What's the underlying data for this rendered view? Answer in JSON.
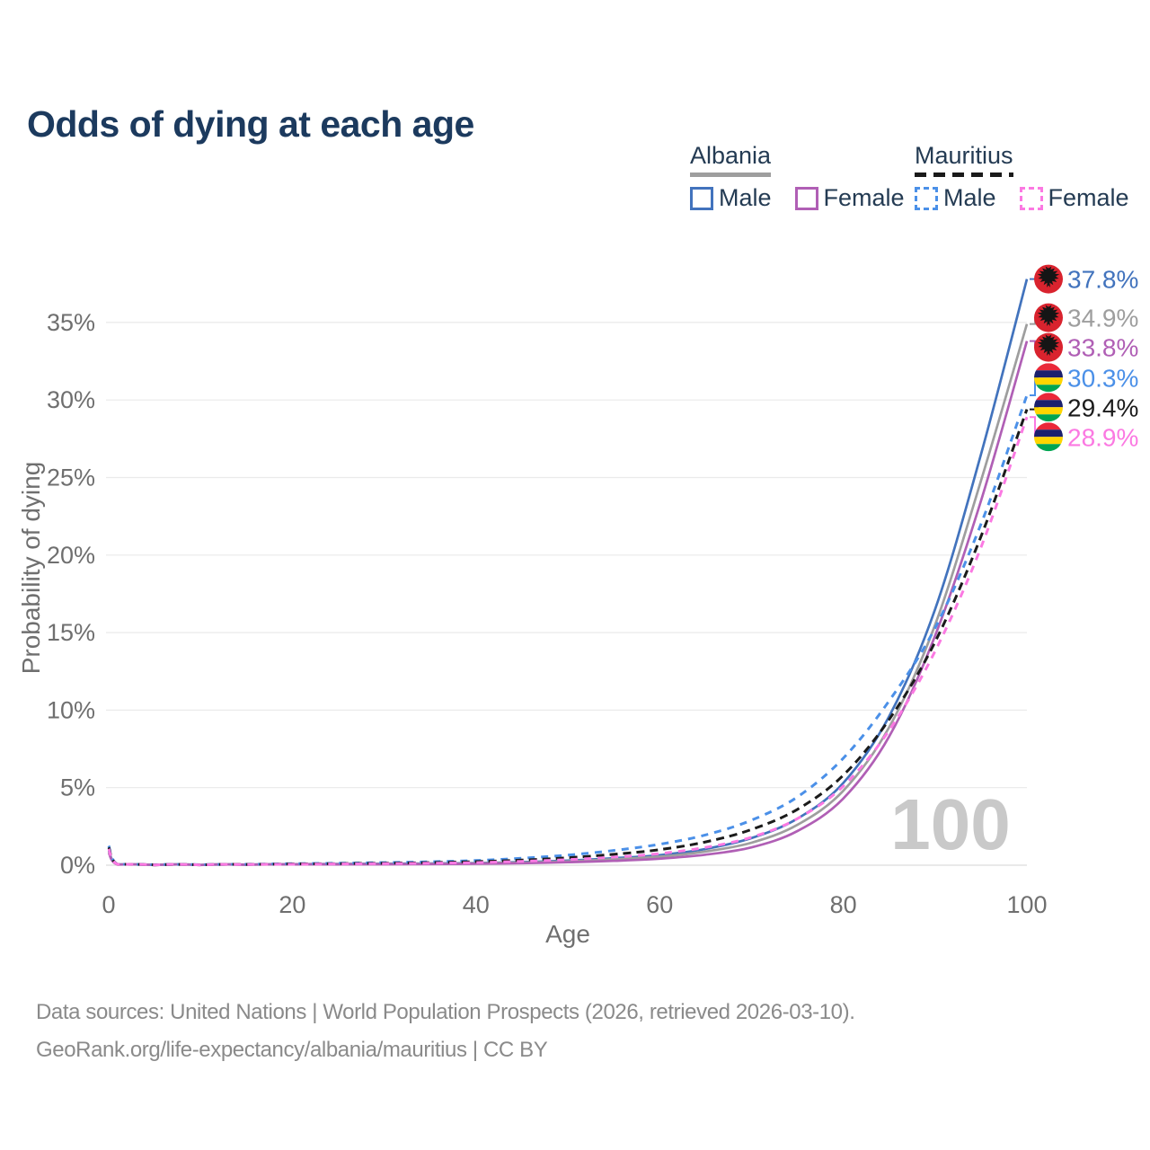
{
  "title": "Odds of dying at each age",
  "legend": {
    "groups": [
      {
        "country": "Albania",
        "line_style": "solid",
        "items": [
          {
            "label": "Male",
            "color": "#4273bd"
          },
          {
            "label": "Female",
            "color": "#b05fb5"
          }
        ]
      },
      {
        "country": "Mauritius",
        "line_style": "dashed",
        "items": [
          {
            "label": "Male",
            "color": "#4b90e8"
          },
          {
            "label": "Female",
            "color": "#fb79e2"
          }
        ]
      }
    ]
  },
  "flags": {
    "albania": {
      "bg": "#d9232e",
      "eagle": "#151515"
    },
    "mauritius": {
      "stripes": [
        "#EA2839",
        "#1A206D",
        "#FFD500",
        "#00A551"
      ]
    }
  },
  "chart_data": {
    "type": "line",
    "title": "Odds of dying at each age",
    "xlabel": "Age",
    "ylabel": "Probability of dying",
    "x_ticks": [
      0,
      20,
      40,
      60,
      80,
      100
    ],
    "y_ticks_pct": [
      0,
      5,
      10,
      15,
      20,
      25,
      30,
      35
    ],
    "xlim": [
      0,
      100
    ],
    "ylim_pct": [
      0,
      38
    ],
    "grid": "horizontal",
    "legend_position": "top-right",
    "watermark": "100",
    "ages": [
      0,
      1,
      5,
      10,
      15,
      20,
      25,
      30,
      35,
      40,
      45,
      50,
      55,
      60,
      65,
      70,
      75,
      80,
      85,
      90,
      95,
      100
    ],
    "series": [
      {
        "id": "albania-male",
        "name": "Albania Male",
        "country": "Albania",
        "sex": "Male",
        "flag": "albania",
        "color": "#4273bd",
        "dash": null,
        "end_label": "37.8%",
        "end_value_pct": 37.8,
        "values_pct": [
          0.95,
          0.05,
          0.02,
          0.02,
          0.04,
          0.07,
          0.08,
          0.09,
          0.11,
          0.14,
          0.2,
          0.3,
          0.45,
          0.65,
          1.05,
          1.75,
          3.0,
          5.3,
          9.6,
          16.5,
          26.5,
          37.8
        ]
      },
      {
        "id": "albania-total",
        "name": "Albania (both sexes)",
        "country": "Albania",
        "sex": "Total",
        "flag": "albania",
        "color": "#9e9e9e",
        "dash": null,
        "end_label": "34.9%",
        "end_value_pct": 34.9,
        "values_pct": [
          0.88,
          0.04,
          0.02,
          0.02,
          0.03,
          0.06,
          0.07,
          0.08,
          0.09,
          0.12,
          0.17,
          0.25,
          0.38,
          0.55,
          0.88,
          1.45,
          2.6,
          4.8,
          8.9,
          15.5,
          24.8,
          34.9
        ]
      },
      {
        "id": "albania-female",
        "name": "Albania Female",
        "country": "Albania",
        "sex": "Female",
        "flag": "albania",
        "color": "#b05fb5",
        "dash": null,
        "end_label": "33.8%",
        "end_value_pct": 33.8,
        "values_pct": [
          0.8,
          0.04,
          0.01,
          0.01,
          0.03,
          0.05,
          0.05,
          0.06,
          0.07,
          0.09,
          0.13,
          0.19,
          0.28,
          0.42,
          0.68,
          1.15,
          2.2,
          4.3,
          8.3,
          14.8,
          23.5,
          33.8
        ]
      },
      {
        "id": "mauritius-male",
        "name": "Mauritius Male",
        "country": "Mauritius",
        "sex": "Male",
        "flag": "mauritius",
        "color": "#4b90e8",
        "dash": "8 7",
        "end_label": "30.3%",
        "end_value_pct": 30.3,
        "values_pct": [
          1.25,
          0.06,
          0.03,
          0.03,
          0.06,
          0.1,
          0.13,
          0.17,
          0.22,
          0.3,
          0.45,
          0.65,
          0.95,
          1.35,
          1.95,
          2.9,
          4.4,
          6.9,
          10.6,
          15.3,
          22.0,
          30.3
        ]
      },
      {
        "id": "mauritius-total",
        "name": "Mauritius (both sexes)",
        "country": "Mauritius",
        "sex": "Total",
        "flag": "mauritius",
        "color": "#1b1b1b",
        "dash": "9 6",
        "end_label": "29.4%",
        "end_value_pct": 29.4,
        "values_pct": [
          1.15,
          0.05,
          0.02,
          0.02,
          0.05,
          0.08,
          0.1,
          0.13,
          0.17,
          0.23,
          0.33,
          0.48,
          0.7,
          1.0,
          1.5,
          2.3,
          3.6,
          5.8,
          9.4,
          14.4,
          21.2,
          29.4
        ]
      },
      {
        "id": "mauritius-female",
        "name": "Mauritius Female",
        "country": "Mauritius",
        "sex": "Female",
        "flag": "mauritius",
        "color": "#fb79e2",
        "dash": "8 7",
        "end_label": "28.9%",
        "end_value_pct": 28.9,
        "values_pct": [
          1.05,
          0.05,
          0.02,
          0.02,
          0.04,
          0.06,
          0.08,
          0.1,
          0.13,
          0.17,
          0.25,
          0.36,
          0.52,
          0.75,
          1.15,
          1.8,
          3.0,
          5.1,
          8.7,
          13.8,
          20.5,
          28.9
        ]
      }
    ]
  },
  "footer": {
    "line1": "Data sources: United Nations | World Population Prospects (2026, retrieved 2026-03-10).",
    "line2": "GeoRank.org/life-expectancy/albania/mauritius | CC BY"
  }
}
